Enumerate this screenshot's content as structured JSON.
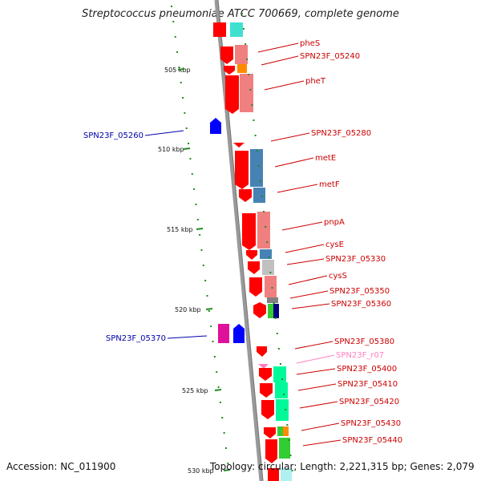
{
  "title": "Streptococcus pneumoniae ATCC 700669, complete genome",
  "accession": "Accession: NC_011900",
  "topology": "Topology: circular; Length: 2,221,315 bp; Genes: 2,079",
  "colors": {
    "cds": "#ff0000",
    "cds_pink": "#f08080",
    "blue": "#4682b4",
    "cyan": "#40e0d0",
    "green": "#32cd32",
    "teal": "#00fa9a",
    "magenta": "#e0109a",
    "navy": "#0000ff",
    "label_red": "#cc0000",
    "label_blue": "#0000aa",
    "label_pink": "#ff80c0",
    "tick_green": "#228b22",
    "backbone": "#999999"
  },
  "kbp_markers": [
    {
      "label": "505 kbp"
    },
    {
      "label": "510 kbp"
    },
    {
      "label": "515 kbp"
    },
    {
      "label": "520 kbp"
    },
    {
      "label": "525 kbp"
    },
    {
      "label": "530 kbp"
    }
  ],
  "right_labels": [
    {
      "text": "pheS",
      "color": "label_red"
    },
    {
      "text": "SPN23F_05240",
      "color": "label_red"
    },
    {
      "text": "pheT",
      "color": "label_red"
    },
    {
      "text": "SPN23F_05280",
      "color": "label_red"
    },
    {
      "text": "metE",
      "color": "label_red"
    },
    {
      "text": "metF",
      "color": "label_red"
    },
    {
      "text": "pnpA",
      "color": "label_red"
    },
    {
      "text": "cysE",
      "color": "label_red"
    },
    {
      "text": "SPN23F_05330",
      "color": "label_red"
    },
    {
      "text": "cysS",
      "color": "label_red"
    },
    {
      "text": "SPN23F_05350",
      "color": "label_red"
    },
    {
      "text": "SPN23F_05360",
      "color": "label_red"
    },
    {
      "text": "SPN23F_05380",
      "color": "label_red"
    },
    {
      "text": "SPN23F_r07",
      "color": "label_pink"
    },
    {
      "text": "SPN23F_05400",
      "color": "label_red"
    },
    {
      "text": "SPN23F_05410",
      "color": "label_red"
    },
    {
      "text": "SPN23F_05420",
      "color": "label_red"
    },
    {
      "text": "SPN23F_05430",
      "color": "label_red"
    },
    {
      "text": "SPN23F_05440",
      "color": "label_red"
    }
  ],
  "left_labels": [
    {
      "text": "SPN23F_05260",
      "color": "label_blue"
    },
    {
      "text": "SPN23F_05370",
      "color": "label_blue"
    }
  ]
}
